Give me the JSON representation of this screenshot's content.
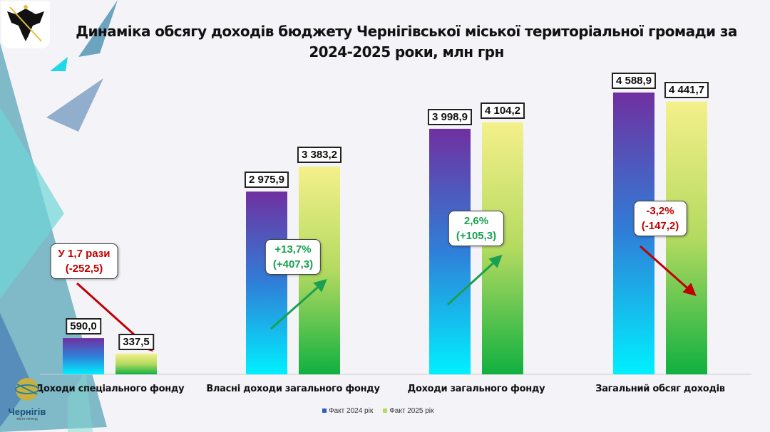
{
  "title_line1": "Динаміка обсягу доходів  бюджету Чернігівської міської територіальної громади за",
  "title_line2": "2024-2025 роки, млн грн",
  "logo_bottom": {
    "name": "Чернігів",
    "tagline": "місто легенд"
  },
  "colors": {
    "fact2024_top": "#7030a0",
    "fact2024_bottom": "#00f0ff",
    "fact2025_top": "#f4f08a",
    "fact2025_bottom": "#10b040",
    "up": "#1aa050",
    "down": "#c00000"
  },
  "chart_data": {
    "type": "bar",
    "title": "Динаміка обсягу доходів бюджету Чернігівської міської територіальної громади за 2024-2025 роки, млн грн",
    "categories": [
      "Доходи спеціального фонду",
      "Власні доходи загального фонду",
      "Доходи загального фонду",
      "Загальний обсяг доходів"
    ],
    "series": [
      {
        "name": "Факт 2024 рік",
        "values": [
          590.0,
          2975.9,
          3998.9,
          4588.9
        ],
        "labels": [
          "590,0",
          "2 975,9",
          "3 998,9",
          "4 588,9"
        ]
      },
      {
        "name": "Факт 2025 рік",
        "values": [
          337.5,
          3383.2,
          4104.2,
          4441.7
        ],
        "labels": [
          "337,5",
          "3 383,2",
          "4 104,2",
          "4 441,7"
        ]
      }
    ],
    "ylim": [
      0,
      4600
    ],
    "legend": "bottom",
    "annotations": [
      {
        "line1": "У 1,7 рази",
        "line2": "(-252,5)",
        "direction": "down"
      },
      {
        "line1": "+13,7%",
        "line2": "(+407,3)",
        "direction": "up"
      },
      {
        "line1": "2,6%",
        "line2": "(+105,3)",
        "direction": "up"
      },
      {
        "line1": "-3,2%",
        "line2": "(-147,2)",
        "direction": "down"
      }
    ]
  }
}
